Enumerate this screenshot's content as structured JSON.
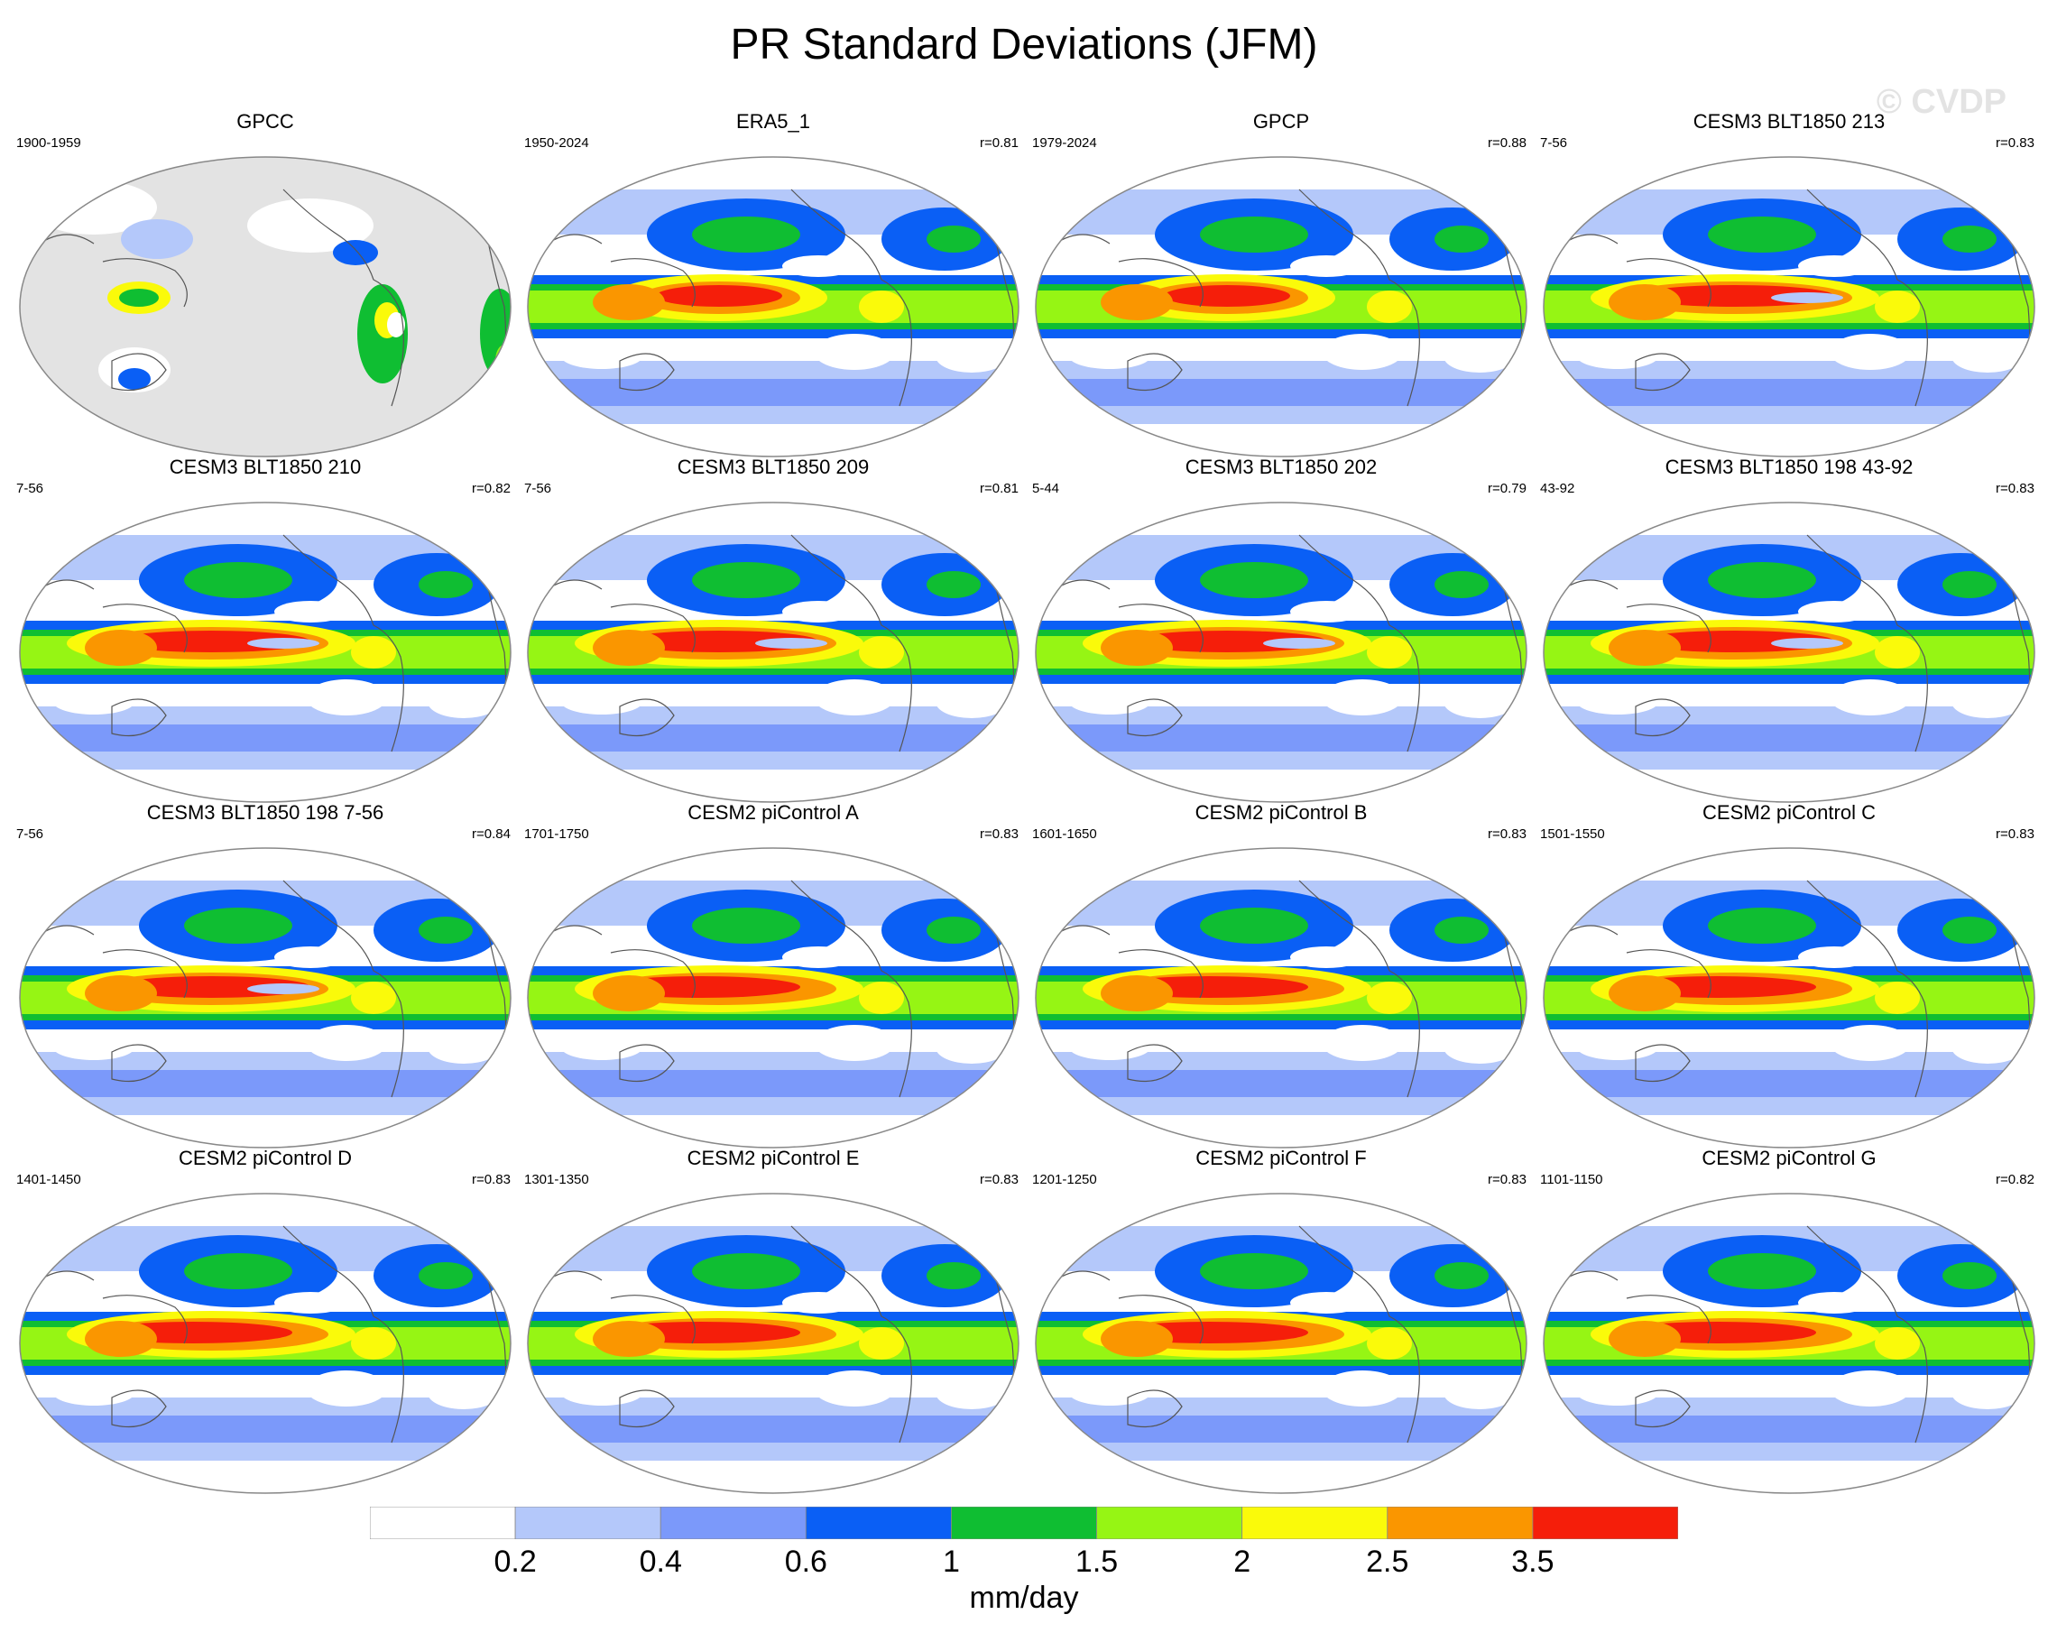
{
  "title": "PR Standard Deviations (JFM)",
  "watermark": "© CVDP",
  "units": "mm/day",
  "colorbar": {
    "colors": [
      "#ffffff",
      "#b4c8fa",
      "#7b99fa",
      "#0a5ff5",
      "#0fbe32",
      "#96f514",
      "#fafa0a",
      "#fa9600",
      "#f51e0a"
    ],
    "labels": [
      "0.2",
      "0.4",
      "0.6",
      "1",
      "1.5",
      "2",
      "2.5",
      "3.5"
    ]
  },
  "colors": {
    "land_missing": "#e3e3e3",
    "coast": "#555555",
    "outline": "#888888"
  },
  "panels": [
    {
      "title": "GPCC",
      "period": "1900-1959",
      "corr": "",
      "style": "land"
    },
    {
      "title": "ERA5_1",
      "period": "1950-2024",
      "corr": "r=0.81",
      "style": "obs"
    },
    {
      "title": "GPCP",
      "period": "1979-2024",
      "corr": "r=0.88",
      "style": "obs"
    },
    {
      "title": "CESM3 BLT1850 213",
      "period": "7-56",
      "corr": "r=0.83",
      "style": "cesm3"
    },
    {
      "title": "CESM3 BLT1850 210",
      "period": "7-56",
      "corr": "r=0.82",
      "style": "cesm3"
    },
    {
      "title": "CESM3 BLT1850 209",
      "period": "7-56",
      "corr": "r=0.81",
      "style": "cesm3"
    },
    {
      "title": "CESM3 BLT1850 202",
      "period": "5-44",
      "corr": "r=0.79",
      "style": "cesm3"
    },
    {
      "title": "CESM3 BLT1850 198 43-92",
      "period": "43-92",
      "corr": "r=0.83",
      "style": "cesm3"
    },
    {
      "title": "CESM3 BLT1850 198 7-56",
      "period": "7-56",
      "corr": "r=0.84",
      "style": "cesm3"
    },
    {
      "title": "CESM2 piControl A",
      "period": "1701-1750",
      "corr": "r=0.83",
      "style": "cesm2"
    },
    {
      "title": "CESM2 piControl B",
      "period": "1601-1650",
      "corr": "r=0.83",
      "style": "cesm2"
    },
    {
      "title": "CESM2 piControl C",
      "period": "1501-1550",
      "corr": "r=0.83",
      "style": "cesm2"
    },
    {
      "title": "CESM2 piControl D",
      "period": "1401-1450",
      "corr": "r=0.83",
      "style": "cesm2"
    },
    {
      "title": "CESM2 piControl E",
      "period": "1301-1350",
      "corr": "r=0.83",
      "style": "cesm2"
    },
    {
      "title": "CESM2 piControl F",
      "period": "1201-1250",
      "corr": "r=0.83",
      "style": "cesm2"
    },
    {
      "title": "CESM2 piControl G",
      "period": "1101-1150",
      "corr": "r=0.82",
      "style": "cesm2"
    }
  ]
}
